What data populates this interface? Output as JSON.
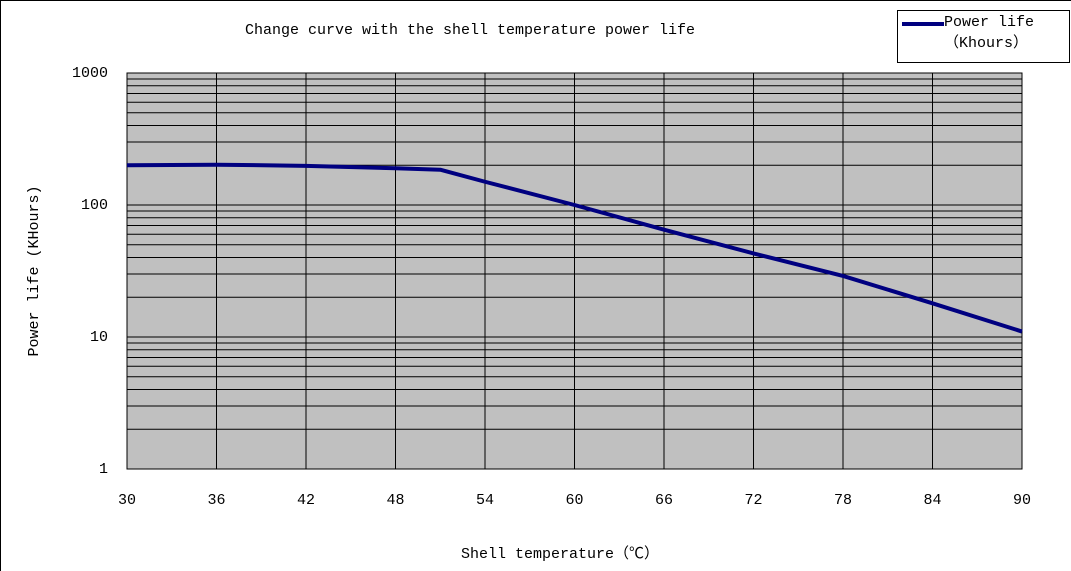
{
  "chart_data": {
    "type": "line",
    "title": "Change curve with the shell temperature power life",
    "xlabel": "Shell temperature（℃）",
    "ylabel": "Power life (KHours)",
    "x": [
      30,
      36,
      42,
      48,
      51,
      54,
      60,
      66,
      72,
      78,
      84,
      90
    ],
    "series": [
      {
        "name": "Power life\n（Khours）",
        "color": "#000080",
        "values": [
          200,
          202,
          198,
          190,
          185,
          150,
          100,
          65,
          43,
          29,
          18,
          11
        ]
      }
    ],
    "xlim": [
      30,
      90
    ],
    "xticks": [
      30,
      36,
      42,
      48,
      54,
      60,
      66,
      72,
      78,
      84,
      90
    ],
    "ylim": [
      1,
      1000
    ],
    "yticks": [
      1,
      10,
      100,
      1000
    ],
    "yscale": "log",
    "grid": true,
    "minor_grid": true,
    "legend": "upper right"
  }
}
